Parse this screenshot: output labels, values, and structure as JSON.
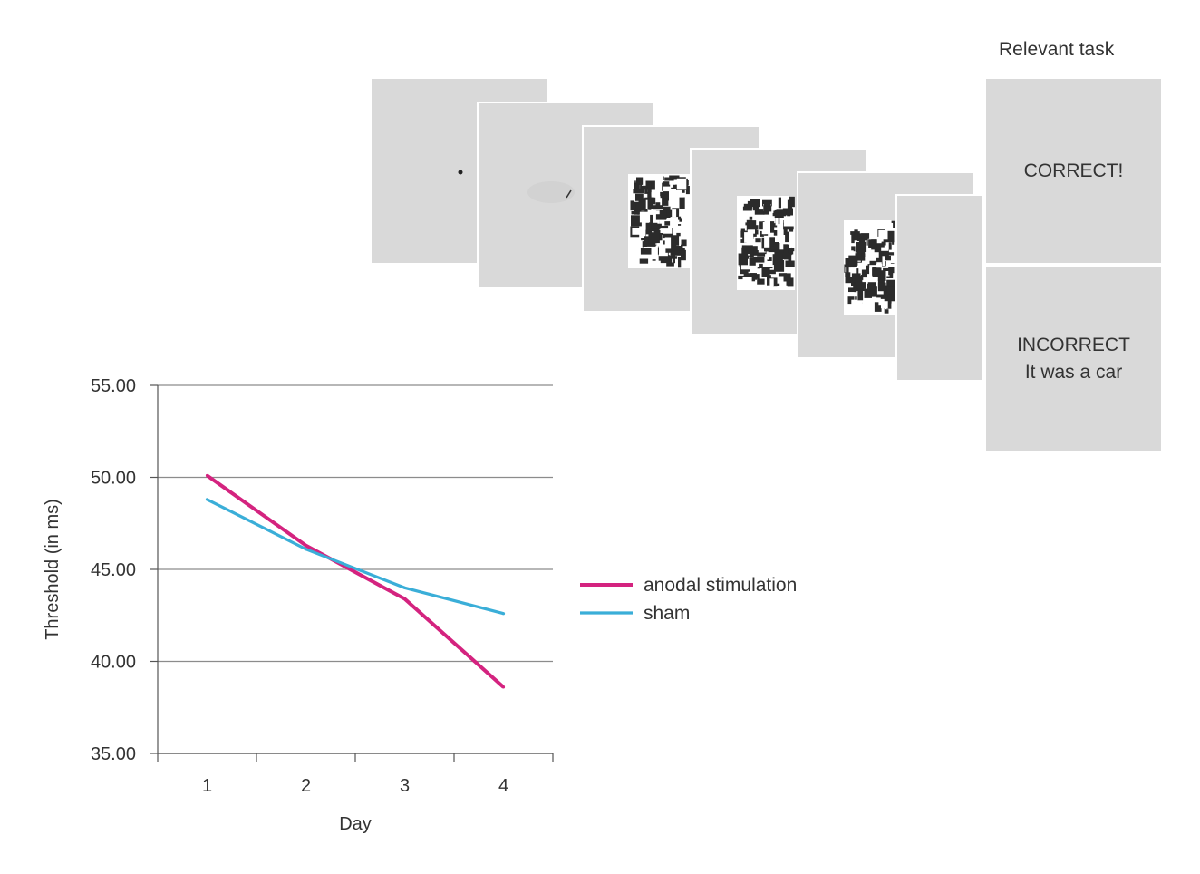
{
  "trial_sequence": {
    "title": "Relevant task",
    "feedback_correct": "CORRECT!",
    "feedback_incorrect_line1": "INCORRECT",
    "feedback_incorrect_line2": "It was a car"
  },
  "chart_data": {
    "type": "line",
    "title": "",
    "xlabel": "Day",
    "ylabel": "Threshold (in ms)",
    "categories": [
      "1",
      "2",
      "3",
      "4"
    ],
    "ylim": [
      35,
      55
    ],
    "yticks": [
      "35.00",
      "40.00",
      "45.00",
      "50.00",
      "55.00"
    ],
    "grid": true,
    "legend": "right",
    "series": [
      {
        "name": "anodal stimulation",
        "color": "#d4237f",
        "values": [
          50.1,
          46.3,
          43.4,
          38.6
        ]
      },
      {
        "name": "sham",
        "color": "#3aaed8",
        "values": [
          48.8,
          46.1,
          44.0,
          42.6
        ]
      }
    ]
  }
}
